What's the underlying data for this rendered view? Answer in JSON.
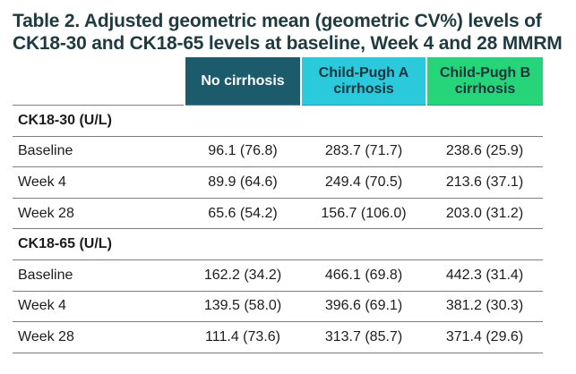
{
  "title": "Table 2. Adjusted geometric mean (geometric CV%) levels of CK18-30 and CK18-65 levels at baseline, Week 4 and 28 MMRM",
  "columns": [
    "No cirrhosis",
    "Child-Pugh A cirrhosis",
    "Child-Pugh B cirrhosis"
  ],
  "column_colors": [
    "#1c5b6b",
    "#2bc9dc",
    "#26d57a"
  ],
  "sections": [
    {
      "label": "CK18-30 (U/L)",
      "rows": [
        {
          "label": "Baseline",
          "values": [
            "96.1 (76.8)",
            "283.7 (71.7)",
            "238.6 (25.9)"
          ]
        },
        {
          "label": "Week 4",
          "values": [
            "89.9 (64.6)",
            "249.4 (70.5)",
            "213.6 (37.1)"
          ]
        },
        {
          "label": "Week 28",
          "values": [
            "65.6 (54.2)",
            "156.7 (106.0)",
            "203.0 (31.2)"
          ]
        }
      ]
    },
    {
      "label": "CK18-65 (U/L)",
      "rows": [
        {
          "label": "Baseline",
          "values": [
            "162.2 (34.2)",
            "466.1 (69.8)",
            "442.3 (31.4)"
          ]
        },
        {
          "label": "Week 4",
          "values": [
            "139.5 (58.0)",
            "396.6 (69.1)",
            "381.2 (30.3)"
          ]
        },
        {
          "label": "Week 28",
          "values": [
            "111.4 (73.6)",
            "313.7 (85.7)",
            "371.4 (29.6)"
          ]
        }
      ]
    }
  ]
}
